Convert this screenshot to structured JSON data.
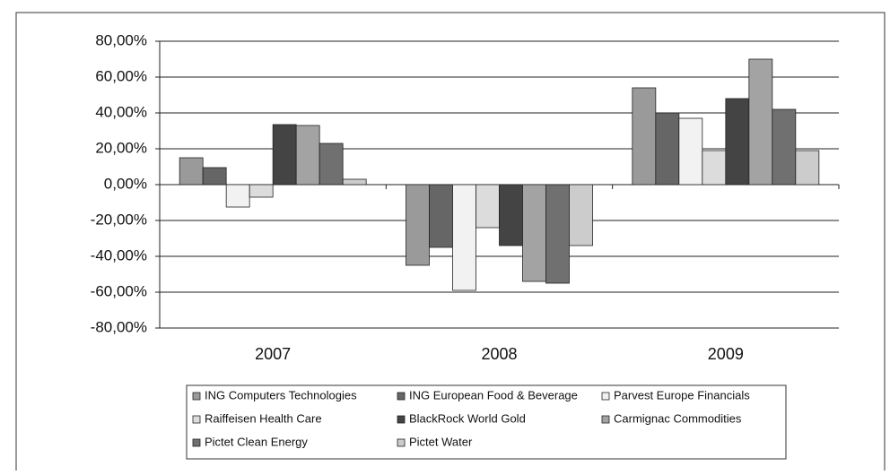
{
  "chart_data": {
    "type": "bar",
    "categories": [
      "2007",
      "2008",
      "2009"
    ],
    "series": [
      {
        "name": "ING Computers Technologies",
        "color": "#9a9a9a",
        "values": [
          15,
          -45,
          54
        ]
      },
      {
        "name": "ING European Food & Beverage",
        "color": "#666666",
        "values": [
          9.5,
          -35,
          40
        ]
      },
      {
        "name": "Parvest Europe Financials",
        "color": "#f2f2f2",
        "values": [
          -12.5,
          -59,
          37
        ]
      },
      {
        "name": "Raiffeisen Health Care",
        "color": "#dcdcdc",
        "values": [
          -7,
          -24,
          19
        ]
      },
      {
        "name": "BlackRock World Gold",
        "color": "#444444",
        "values": [
          33.5,
          -34,
          48
        ]
      },
      {
        "name": "Carmignac Commodities",
        "color": "#a3a3a3",
        "values": [
          33,
          -54,
          70
        ]
      },
      {
        "name": "Pictet Clean Energy",
        "color": "#707070",
        "values": [
          23,
          -55,
          42
        ]
      },
      {
        "name": "Pictet Water",
        "color": "#cccccc",
        "values": [
          3,
          -34,
          19
        ]
      }
    ],
    "ylim": [
      -80,
      80
    ],
    "yticks": [
      {
        "value": -80,
        "label": "-80,00%"
      },
      {
        "value": -60,
        "label": "-60,00%"
      },
      {
        "value": -40,
        "label": "-40,00%"
      },
      {
        "value": -20,
        "label": "-20,00%"
      },
      {
        "value": 0,
        "label": "0,00%"
      },
      {
        "value": 20,
        "label": "20,00%"
      },
      {
        "value": 40,
        "label": "40,00%"
      },
      {
        "value": 60,
        "label": "60,00%"
      },
      {
        "value": 80,
        "label": "80,00%"
      }
    ],
    "grid": true
  }
}
